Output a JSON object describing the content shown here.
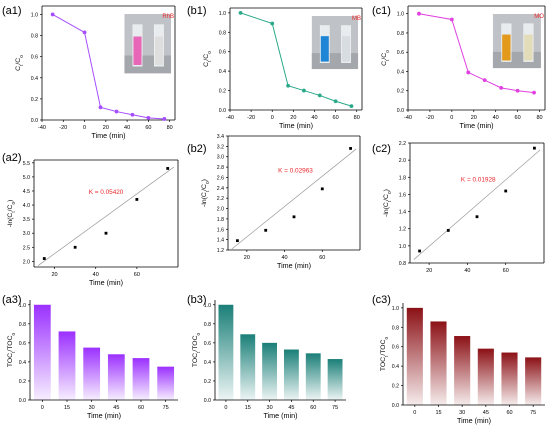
{
  "colors": {
    "purple": "#a64dff",
    "teal": "#2aa88a",
    "magenta": "#e040e0",
    "red_label": "#e8262b",
    "bar_purple": "#9b30ff",
    "bar_teal": "#1a7f78",
    "bar_red": "#8b1116",
    "fit_line": "#999999"
  },
  "chart_data": [
    {
      "id": "a1",
      "panel_label": "(a1)",
      "type": "line",
      "x": [
        -30,
        0,
        15,
        30,
        45,
        60,
        75
      ],
      "y": [
        1.0,
        0.83,
        0.12,
        0.08,
        0.05,
        0.02,
        0.01
      ],
      "xlim": [
        -40,
        85
      ],
      "ylim": [
        0,
        1.08
      ],
      "xticks": [
        -40,
        -20,
        0,
        20,
        40,
        60,
        80
      ],
      "yticks": [
        0,
        0.2,
        0.4,
        0.6,
        0.8,
        1.0
      ],
      "ytick_labels": [
        "0.0",
        "0.2",
        "0.4",
        "0.6",
        "0.8",
        "1.0"
      ],
      "xlabel": "Time (min)",
      "ylabel": "C_t/C_0",
      "dye_label": "RhB",
      "label_color": "#e8262b",
      "vial_colors": [
        "#e866b8",
        "#dedede"
      ],
      "color": "#a64dff"
    },
    {
      "id": "b1",
      "panel_label": "(b1)",
      "type": "line",
      "x": [
        -30,
        0,
        15,
        30,
        45,
        60,
        75
      ],
      "y": [
        1.0,
        0.89,
        0.25,
        0.2,
        0.15,
        0.09,
        0.04
      ],
      "xlim": [
        -40,
        85
      ],
      "ylim": [
        0,
        1.05
      ],
      "xticks": [
        -40,
        -20,
        0,
        20,
        40,
        60,
        80
      ],
      "yticks": [
        0,
        0.2,
        0.4,
        0.6,
        0.8,
        1.0
      ],
      "ytick_labels": [
        "0.0",
        "0.2",
        "0.4",
        "0.6",
        "0.8",
        "1.0"
      ],
      "xlabel": "Time (min)",
      "ylabel": "C_t/C_0",
      "dye_label": "MB",
      "label_color": "#e8262b",
      "vial_colors": [
        "#1f86d6",
        "#d8dde2"
      ],
      "color": "#2aa88a"
    },
    {
      "id": "c1",
      "panel_label": "(c1)",
      "type": "line",
      "x": [
        -30,
        0,
        15,
        30,
        45,
        60,
        75
      ],
      "y": [
        1.0,
        0.94,
        0.39,
        0.31,
        0.23,
        0.2,
        0.18
      ],
      "xlim": [
        -40,
        85
      ],
      "ylim": [
        0,
        1.08
      ],
      "xticks": [
        -40,
        -20,
        0,
        20,
        40,
        60,
        80
      ],
      "yticks": [
        0,
        0.2,
        0.4,
        0.6,
        0.8,
        1.0
      ],
      "ytick_labels": [
        "0.0",
        "0.2",
        "0.4",
        "0.6",
        "0.8",
        "1.0"
      ],
      "xlabel": "Time (min)",
      "ylabel": "C_t/C_0",
      "dye_label": "MO",
      "label_color": "#e8262b",
      "vial_colors": [
        "#e39a1c",
        "#e3dcb8"
      ],
      "color": "#e040e0"
    },
    {
      "id": "a2",
      "panel_label": "(a2)",
      "type": "scatter",
      "x": [
        15,
        30,
        45,
        60,
        75
      ],
      "y": [
        2.1,
        2.5,
        3.0,
        4.2,
        5.3
      ],
      "fit_line": [
        [
          12,
          1.85
        ],
        [
          78,
          5.35
        ]
      ],
      "xlim": [
        10,
        80
      ],
      "ylim": [
        1.8,
        5.6
      ],
      "xticks": [
        20,
        40,
        60
      ],
      "yticks": [
        2.0,
        2.5,
        3.0,
        3.5,
        4.0,
        4.5,
        5.0,
        5.5
      ],
      "ytick_labels": [
        "2.0",
        "2.5",
        "3.0",
        "3.5",
        "4.0",
        "4.5",
        "5.0",
        "5.5"
      ],
      "xlabel": "Time (min)",
      "ylabel": "-ln(C_t/C_0)",
      "annotation": "K  = 0.05420",
      "annotation_color": "#e8262b"
    },
    {
      "id": "b2",
      "panel_label": "(b2)",
      "type": "scatter",
      "x": [
        15,
        30,
        45,
        60,
        75
      ],
      "y": [
        1.38,
        1.58,
        1.84,
        2.38,
        3.16
      ],
      "fit_line": [
        [
          12,
          1.22
        ],
        [
          78,
          3.15
        ]
      ],
      "xlim": [
        10,
        80
      ],
      "ylim": [
        1.2,
        3.4
      ],
      "xticks": [
        20,
        40,
        60
      ],
      "yticks": [
        1.2,
        1.4,
        1.6,
        1.8,
        2.0,
        2.2,
        2.4,
        2.6,
        2.8,
        3.0,
        3.2,
        3.4
      ],
      "ytick_labels": [
        "1.2",
        "1.4",
        "1.6",
        "1.8",
        "2.0",
        "2.2",
        "2.4",
        "2.6",
        "2.8",
        "3.0",
        "3.2",
        "3.4"
      ],
      "xlabel": "Time (min)",
      "ylabel": "-ln(C_t/C_0)",
      "annotation": "K  = 0.02963",
      "annotation_color": "#e8262b"
    },
    {
      "id": "c2",
      "panel_label": "(c2)",
      "type": "scatter",
      "x": [
        15,
        30,
        45,
        60,
        75
      ],
      "y": [
        0.94,
        1.18,
        1.34,
        1.64,
        2.14
      ],
      "fit_line": [
        [
          12,
          0.84
        ],
        [
          78,
          2.12
        ]
      ],
      "xlim": [
        10,
        80
      ],
      "ylim": [
        0.8,
        2.2
      ],
      "xticks": [
        20,
        40,
        60
      ],
      "yticks": [
        0.8,
        1.0,
        1.2,
        1.4,
        1.6,
        1.8,
        2.0,
        2.2
      ],
      "ytick_labels": [
        "0.8",
        "1.0",
        "1.2",
        "1.4",
        "1.6",
        "1.8",
        "2.0",
        "2.2"
      ],
      "xlabel": "",
      "ylabel": "-ln(C_t/C_0)",
      "annotation": "K  = 0.01928",
      "annotation_color": "#e8262b"
    },
    {
      "id": "a3",
      "panel_label": "(a3)",
      "type": "bar",
      "categories": [
        "0",
        "15",
        "30",
        "45",
        "60",
        "75"
      ],
      "values": [
        1.0,
        0.72,
        0.55,
        0.48,
        0.44,
        0.35
      ],
      "ylim": [
        0,
        1.05
      ],
      "yticks": [
        0,
        0.2,
        0.4,
        0.6,
        0.8,
        1.0
      ],
      "ytick_labels": [
        "0.0",
        "0.2",
        "0.4",
        "0.6",
        "0.8",
        "1.0"
      ],
      "xlabel": "Time (min)",
      "ylabel": "TOC_t/TOC_0",
      "color": "#9b30ff"
    },
    {
      "id": "b3",
      "panel_label": "(b3)",
      "type": "bar",
      "categories": [
        "0",
        "15",
        "30",
        "45",
        "60",
        "75"
      ],
      "values": [
        1.0,
        0.69,
        0.6,
        0.53,
        0.49,
        0.43
      ],
      "ylim": [
        0,
        1.05
      ],
      "yticks": [
        0,
        0.2,
        0.4,
        0.6,
        0.8,
        1.0
      ],
      "ytick_labels": [
        "0.0",
        "0.2",
        "0.4",
        "0.6",
        "0.8",
        "1.0"
      ],
      "xlabel": "Time (min)",
      "ylabel": "TOC_t/TOC_0",
      "color": "#1a7f78"
    },
    {
      "id": "c3",
      "panel_label": "(c3)",
      "type": "bar",
      "categories": [
        "0",
        "15",
        "30",
        "45",
        "60",
        "75"
      ],
      "values": [
        1.0,
        0.86,
        0.71,
        0.58,
        0.54,
        0.49
      ],
      "ylim": [
        0,
        1.05
      ],
      "yticks": [
        0,
        0.2,
        0.4,
        0.6,
        0.8,
        1.0
      ],
      "ytick_labels": [
        "0.0",
        "0.2",
        "0.4",
        "0.6",
        "0.8",
        "1.0"
      ],
      "xlabel": "Time (min)",
      "ylabel": "TOC_t/TOC_0",
      "color": "#8b1116"
    }
  ]
}
